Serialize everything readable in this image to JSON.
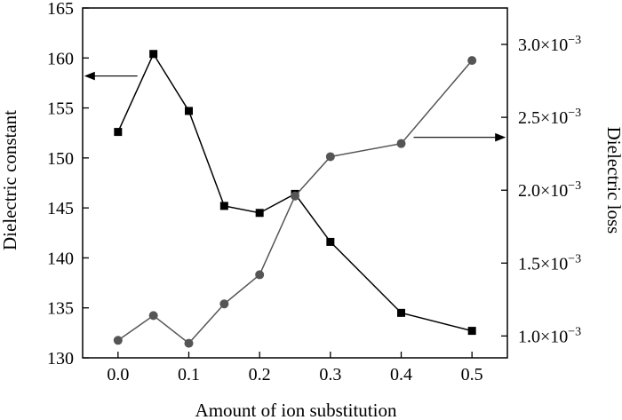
{
  "chart_data": {
    "type": "line",
    "title": "",
    "xlabel": "Amount of ion  substitution",
    "ylabel_left": "Dielectric constant",
    "ylabel_right": "Dielectric loss",
    "xlim": [
      -0.05,
      0.55
    ],
    "ylim_left": [
      130,
      165
    ],
    "ylim_right": [
      0.00085,
      0.00325
    ],
    "x_ticks": [
      {
        "value": 0.0,
        "label": "0.0"
      },
      {
        "value": 0.1,
        "label": "0.1"
      },
      {
        "value": 0.2,
        "label": "0.2"
      },
      {
        "value": 0.3,
        "label": "0.3"
      },
      {
        "value": 0.4,
        "label": "0.4"
      },
      {
        "value": 0.5,
        "label": "0.5"
      }
    ],
    "y_left_ticks": [
      {
        "value": 130,
        "label": "130"
      },
      {
        "value": 135,
        "label": "135"
      },
      {
        "value": 140,
        "label": "140"
      },
      {
        "value": 145,
        "label": "145"
      },
      {
        "value": 150,
        "label": "150"
      },
      {
        "value": 155,
        "label": "155"
      },
      {
        "value": 160,
        "label": "160"
      },
      {
        "value": 165,
        "label": "165"
      }
    ],
    "y_right_ticks": [
      {
        "value": 0.001,
        "mantissa": "1.0",
        "exp": "−3"
      },
      {
        "value": 0.0015,
        "mantissa": "1.5",
        "exp": "−3"
      },
      {
        "value": 0.002,
        "mantissa": "2.0",
        "exp": "−3"
      },
      {
        "value": 0.0025,
        "mantissa": "2.5",
        "exp": "−3"
      },
      {
        "value": 0.003,
        "mantissa": "3.0",
        "exp": "−3"
      }
    ],
    "series": [
      {
        "axis": "left",
        "marker": "square",
        "color": "#000000",
        "x": [
          0.0,
          0.05,
          0.1,
          0.15,
          0.2,
          0.25,
          0.3,
          0.4,
          0.5
        ],
        "values": [
          152.6,
          160.4,
          154.7,
          145.2,
          144.5,
          146.4,
          141.6,
          134.5,
          132.7
        ]
      },
      {
        "axis": "right",
        "marker": "circle",
        "color": "#555555",
        "x": [
          0.0,
          0.05,
          0.1,
          0.15,
          0.2,
          0.25,
          0.3,
          0.4,
          0.5
        ],
        "values": [
          0.00097,
          0.00114,
          0.00095,
          0.00122,
          0.00142,
          0.00196,
          0.00223,
          0.00232,
          0.00289
        ]
      }
    ],
    "annotations": [
      {
        "type": "arrow",
        "direction": "left",
        "target_axis": "left"
      },
      {
        "type": "arrow",
        "direction": "right",
        "target_axis": "right"
      }
    ],
    "grid": false,
    "legend": "none"
  }
}
